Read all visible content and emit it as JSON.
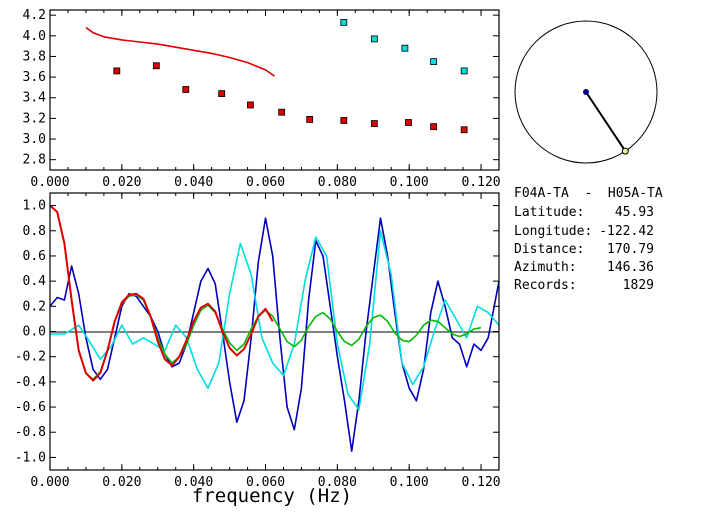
{
  "info": {
    "station_pair": "F04A-TA  -  H05A-TA",
    "latitude_label": "Latitude:",
    "latitude_value": "45.93",
    "longitude_label": "Longitude:",
    "longitude_value": "-122.42",
    "distance_label": "Distance:",
    "distance_value": "170.79",
    "azimuth_label": "Azimuth:",
    "azimuth_value": "146.36",
    "records_label": "Records:",
    "records_value": "1829"
  },
  "colors": {
    "red": "#dd0000",
    "cyan": "#00dddd",
    "blue": "#0000bb",
    "green": "#00bb00",
    "axis": "#000000"
  },
  "chart_data": [
    {
      "type": "scatter",
      "xlim": [
        0.0,
        0.125
      ],
      "ylim": [
        2.7,
        4.25
      ],
      "xticks": [
        "0.000",
        "0.020",
        "0.040",
        "0.060",
        "0.080",
        "0.100",
        "0.120"
      ],
      "xtick_values": [
        0.0,
        0.02,
        0.04,
        0.06,
        0.08,
        0.1,
        0.12
      ],
      "yticks": [
        "2.8",
        "3.0",
        "3.2",
        "3.4",
        "3.6",
        "3.8",
        "4.0",
        "4.2"
      ],
      "ytick_values": [
        2.8,
        3.0,
        3.2,
        3.4,
        3.6,
        3.8,
        4.0,
        4.2
      ],
      "series": [
        {
          "style": "markers",
          "color": "red",
          "x": [
            0.0186,
            0.0296,
            0.0378,
            0.0478,
            0.0558,
            0.0645,
            0.0723,
            0.0818,
            0.0903,
            0.0998,
            0.1068,
            0.1153
          ],
          "y": [
            3.66,
            3.71,
            3.48,
            3.44,
            3.33,
            3.26,
            3.19,
            3.18,
            3.15,
            3.16,
            3.12,
            3.09
          ]
        },
        {
          "style": "markers",
          "color": "cyan",
          "x": [
            0.0818,
            0.0903,
            0.0988,
            0.1068,
            0.1153
          ],
          "y": [
            4.13,
            3.97,
            3.88,
            3.75,
            3.66
          ]
        },
        {
          "style": "line",
          "color": "red",
          "x": [
            0.01,
            0.012,
            0.015,
            0.02,
            0.025,
            0.03,
            0.035,
            0.04,
            0.045,
            0.05,
            0.055,
            0.06,
            0.0625
          ],
          "y": [
            4.08,
            4.03,
            3.99,
            3.96,
            3.94,
            3.92,
            3.89,
            3.86,
            3.83,
            3.79,
            3.74,
            3.67,
            3.61
          ]
        }
      ]
    },
    {
      "type": "line",
      "xlim": [
        0.0,
        0.125
      ],
      "ylim": [
        -1.1,
        1.1
      ],
      "xticks": [
        "0.000",
        "0.020",
        "0.040",
        "0.060",
        "0.080",
        "0.100",
        "0.120"
      ],
      "xtick_values": [
        0.0,
        0.02,
        0.04,
        0.06,
        0.08,
        0.1,
        0.12
      ],
      "yticks": [
        "1.0",
        "0.8",
        "0.6",
        "0.4",
        "0.2",
        "0.0",
        "-0.2",
        "-0.4",
        "-0.6",
        "-0.8",
        "-1.0"
      ],
      "ytick_values": [
        1.0,
        0.8,
        0.6,
        0.4,
        0.2,
        0.0,
        -0.2,
        -0.4,
        -0.6,
        -0.8,
        -1.0
      ],
      "xlabel": "frequency (Hz)",
      "series": [
        {
          "color": "blue",
          "x": [
            0.0,
            0.002,
            0.004,
            0.006,
            0.008,
            0.01,
            0.012,
            0.014,
            0.016,
            0.018,
            0.02,
            0.022,
            0.024,
            0.026,
            0.028,
            0.03,
            0.032,
            0.034,
            0.036,
            0.038,
            0.04,
            0.042,
            0.044,
            0.046,
            0.048,
            0.05,
            0.052,
            0.054,
            0.056,
            0.058,
            0.06,
            0.062,
            0.064,
            0.066,
            0.068,
            0.07,
            0.072,
            0.074,
            0.076,
            0.078,
            0.08,
            0.082,
            0.084,
            0.086,
            0.088,
            0.09,
            0.092,
            0.094,
            0.096,
            0.098,
            0.1,
            0.102,
            0.104,
            0.106,
            0.108,
            0.11,
            0.112,
            0.114,
            0.116,
            0.118,
            0.12,
            0.122,
            0.124,
            0.125
          ],
          "y": [
            0.2,
            0.27,
            0.25,
            0.52,
            0.3,
            -0.05,
            -0.3,
            -0.38,
            -0.3,
            -0.05,
            0.2,
            0.3,
            0.28,
            0.2,
            0.12,
            0.0,
            -0.18,
            -0.28,
            -0.25,
            -0.1,
            0.15,
            0.4,
            0.5,
            0.38,
            0.0,
            -0.4,
            -0.72,
            -0.55,
            -0.05,
            0.55,
            0.9,
            0.6,
            -0.05,
            -0.6,
            -0.78,
            -0.45,
            0.25,
            0.72,
            0.6,
            0.2,
            -0.2,
            -0.55,
            -0.95,
            -0.55,
            0.0,
            0.45,
            0.9,
            0.6,
            0.15,
            -0.25,
            -0.45,
            -0.55,
            -0.3,
            0.15,
            0.4,
            0.2,
            -0.05,
            -0.1,
            -0.28,
            -0.1,
            -0.15,
            -0.05,
            0.25,
            0.4
          ]
        },
        {
          "color": "cyan",
          "x": [
            0.0,
            0.004,
            0.008,
            0.011,
            0.014,
            0.017,
            0.02,
            0.023,
            0.026,
            0.029,
            0.032,
            0.035,
            0.038,
            0.041,
            0.044,
            0.047,
            0.05,
            0.053,
            0.056,
            0.059,
            0.062,
            0.065,
            0.068,
            0.071,
            0.074,
            0.077,
            0.08,
            0.083,
            0.086,
            0.089,
            0.092,
            0.095,
            0.098,
            0.101,
            0.104,
            0.107,
            0.11,
            0.113,
            0.116,
            0.119,
            0.122,
            0.125
          ],
          "y": [
            -0.02,
            -0.02,
            0.05,
            -0.08,
            -0.22,
            -0.12,
            0.05,
            -0.1,
            -0.05,
            -0.1,
            -0.15,
            0.05,
            -0.05,
            -0.3,
            -0.45,
            -0.25,
            0.3,
            0.7,
            0.45,
            -0.05,
            -0.25,
            -0.35,
            -0.1,
            0.4,
            0.75,
            0.6,
            -0.1,
            -0.5,
            -0.62,
            -0.1,
            0.8,
            0.45,
            -0.25,
            -0.42,
            -0.28,
            0.0,
            0.25,
            0.1,
            -0.05,
            0.2,
            0.15,
            0.05
          ]
        },
        {
          "color": "green",
          "x": [
            0.0,
            0.002,
            0.004,
            0.006,
            0.008,
            0.01,
            0.012,
            0.014,
            0.016,
            0.018,
            0.02,
            0.022,
            0.024,
            0.026,
            0.028,
            0.03,
            0.032,
            0.034,
            0.036,
            0.038,
            0.04,
            0.042,
            0.044,
            0.046,
            0.048,
            0.05,
            0.052,
            0.054,
            0.056,
            0.058,
            0.06,
            0.062,
            0.064,
            0.066,
            0.068,
            0.07,
            0.072,
            0.074,
            0.076,
            0.078,
            0.08,
            0.082,
            0.084,
            0.086,
            0.088,
            0.09,
            0.092,
            0.094,
            0.096,
            0.098,
            0.1,
            0.102,
            0.104,
            0.106,
            0.108,
            0.11,
            0.112,
            0.114,
            0.116,
            0.118,
            0.12
          ],
          "y": [
            1.0,
            0.95,
            0.7,
            0.25,
            -0.15,
            -0.33,
            -0.38,
            -0.32,
            -0.15,
            0.08,
            0.22,
            0.28,
            0.29,
            0.25,
            0.12,
            -0.05,
            -0.18,
            -0.25,
            -0.2,
            -0.1,
            0.05,
            0.17,
            0.21,
            0.15,
            0.02,
            -0.09,
            -0.15,
            -0.1,
            0.02,
            0.12,
            0.17,
            0.12,
            0.02,
            -0.08,
            -0.12,
            -0.07,
            0.04,
            0.12,
            0.15,
            0.1,
            0.0,
            -0.08,
            -0.11,
            -0.06,
            0.04,
            0.11,
            0.13,
            0.08,
            -0.01,
            -0.07,
            -0.08,
            -0.03,
            0.05,
            0.09,
            0.08,
            0.03,
            -0.02,
            -0.04,
            -0.02,
            0.02,
            0.03
          ]
        },
        {
          "color": "red",
          "x": [
            0.0,
            0.002,
            0.004,
            0.006,
            0.008,
            0.01,
            0.012,
            0.014,
            0.016,
            0.018,
            0.02,
            0.022,
            0.024,
            0.026,
            0.028,
            0.03,
            0.032,
            0.034,
            0.036,
            0.038,
            0.04,
            0.042,
            0.044,
            0.046,
            0.048,
            0.05,
            0.052,
            0.054,
            0.056,
            0.058,
            0.06,
            0.062
          ],
          "y": [
            1.0,
            0.95,
            0.7,
            0.25,
            -0.15,
            -0.33,
            -0.39,
            -0.33,
            -0.15,
            0.08,
            0.23,
            0.29,
            0.3,
            0.26,
            0.12,
            -0.08,
            -0.22,
            -0.27,
            -0.2,
            -0.07,
            0.08,
            0.19,
            0.22,
            0.16,
            0.0,
            -0.13,
            -0.19,
            -0.14,
            -0.02,
            0.12,
            0.18,
            0.08
          ]
        }
      ]
    }
  ],
  "azimuth_circle": {
    "azimuth_deg": 146.36
  }
}
